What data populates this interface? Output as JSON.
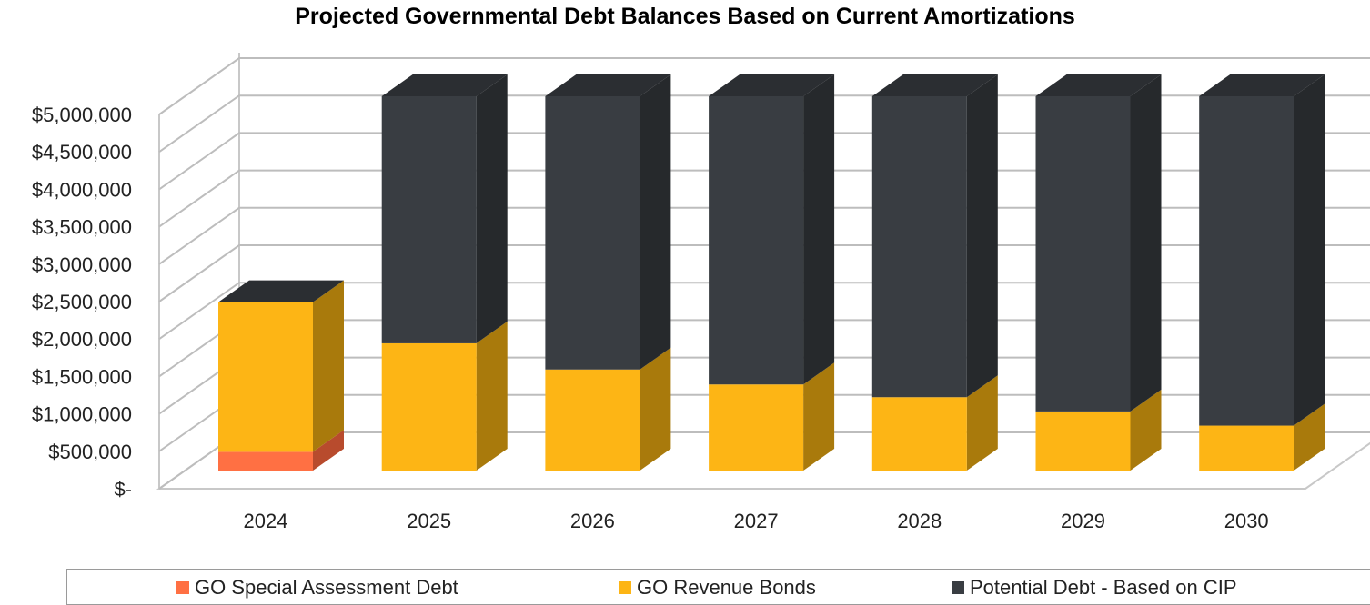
{
  "chart_data": {
    "type": "bar",
    "stacked": true,
    "three_d": true,
    "title": "Projected Governmental Debt Balances Based on Current Amortizations",
    "categories": [
      "2024",
      "2025",
      "2026",
      "2027",
      "2028",
      "2029",
      "2030"
    ],
    "series": [
      {
        "name": "GO Special Assessment Debt",
        "color": "#FF7043",
        "side_color": "#B84B2D",
        "values": [
          250000,
          0,
          0,
          0,
          0,
          0,
          0
        ]
      },
      {
        "name": "GO Revenue Bonds",
        "color": "#FDB515",
        "side_color": "#A97A0C",
        "values": [
          2000000,
          1700000,
          1350000,
          1150000,
          980000,
          790000,
          600000
        ]
      },
      {
        "name": "Potential Debt - Based on CIP",
        "color": "#393D42",
        "side_color": "#26292C",
        "values": [
          0,
          3300000,
          3650000,
          3850000,
          4020000,
          4210000,
          4400000
        ]
      }
    ],
    "ylim": [
      0,
      5000000
    ],
    "yticks": [
      0,
      500000,
      1000000,
      1500000,
      2000000,
      2500000,
      3000000,
      3500000,
      4000000,
      4500000,
      5000000
    ],
    "ytick_labels": [
      "$-",
      "$500,000",
      "$1,000,000",
      "$1,500,000",
      "$2,000,000",
      "$2,500,000",
      "$3,000,000",
      "$3,500,000",
      "$4,000,000",
      "$4,500,000",
      "$5,000,000"
    ],
    "grid": true,
    "legend_position": "bottom"
  }
}
